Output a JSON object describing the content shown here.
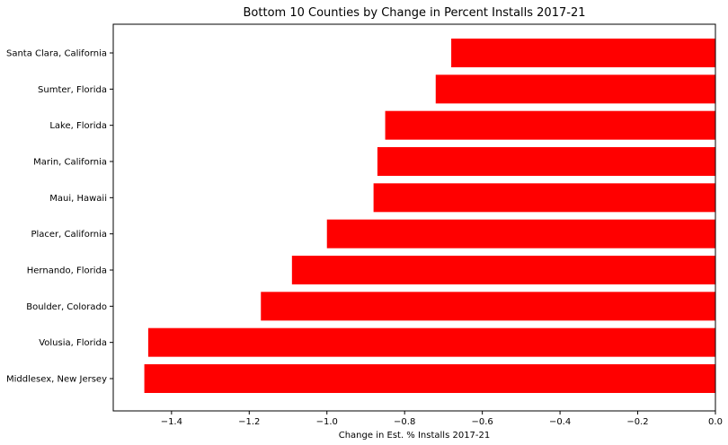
{
  "chart_data": {
    "type": "bar",
    "orientation": "horizontal",
    "title": "Bottom 10 Counties by Change in Percent Installs 2017-21",
    "xlabel": "Change in Est. % Installs 2017-21",
    "ylabel": "",
    "xlim": [
      -1.55,
      0.0
    ],
    "x_ticks": [
      -1.4,
      -1.2,
      -1.0,
      -0.8,
      -0.6,
      -0.4,
      -0.2,
      0.0
    ],
    "x_tick_labels": [
      "−1.4",
      "−1.2",
      "−1.0",
      "−0.8",
      "−0.6",
      "−0.4",
      "−0.2",
      "0.0"
    ],
    "categories": [
      "Santa Clara, California",
      "Sumter, Florida",
      "Lake, Florida",
      "Marin, California",
      "Maui, Hawaii",
      "Placer, California",
      "Hernando, Florida",
      "Boulder, Colorado",
      "Volusia, Florida",
      "Middlesex, New Jersey"
    ],
    "values": [
      -0.68,
      -0.72,
      -0.85,
      -0.87,
      -0.88,
      -1.0,
      -1.09,
      -1.17,
      -1.46,
      -1.47
    ],
    "bar_color": "#ff0000",
    "grid": false,
    "legend": "none"
  }
}
